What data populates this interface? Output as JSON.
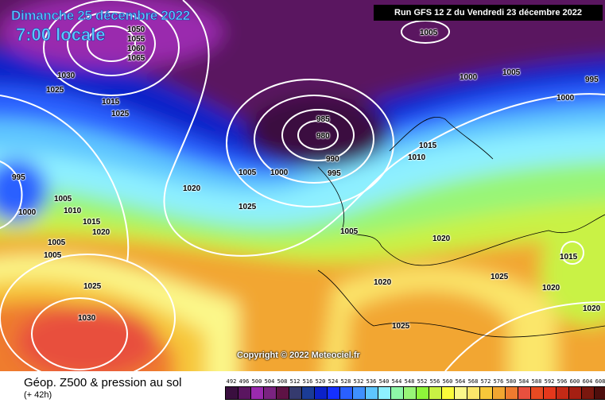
{
  "header": {
    "date": "Dimanche 25 décembre 2022",
    "local_time": "7:00 locale",
    "run_info": "Run GFS 12 Z du Vendredi 23 décembre 2022"
  },
  "copyright": "Copyright © 2022 Meteociel.fr",
  "footer": {
    "title": "Géop. Z500 & pression au sol",
    "forecast_offset": "(+ 42h)"
  },
  "pressure_labels": [
    "1050",
    "1055",
    "1060",
    "1065",
    "1030",
    "1025",
    "1015",
    "1025",
    "995",
    "1000",
    "1005",
    "1010",
    "1015",
    "1020",
    "1005",
    "1020",
    "1025",
    "1030",
    "1005",
    "1000",
    "985",
    "980",
    "990",
    "995",
    "1005",
    "1020",
    "1020",
    "1025",
    "1025",
    "1015",
    "1010",
    "1005",
    "1000",
    "1005",
    "995",
    "1015",
    "1020",
    "1020",
    "1005",
    "1000",
    "1025"
  ],
  "legend": {
    "values": [
      "492",
      "496",
      "500",
      "504",
      "508",
      "512",
      "516",
      "520",
      "524",
      "528",
      "532",
      "536",
      "540",
      "544",
      "548",
      "552",
      "556",
      "560",
      "564",
      "568",
      "572",
      "576",
      "580",
      "584",
      "588",
      "592",
      "596",
      "600",
      "604",
      "608",
      "612"
    ],
    "colors": [
      "#3a0f3f",
      "#5a1560",
      "#9a2aae",
      "#7a2380",
      "#5e1245",
      "#353a6e",
      "#1b3c96",
      "#0c22c9",
      "#1530ff",
      "#2a60ff",
      "#3f90ff",
      "#5ec6ff",
      "#8ef0ff",
      "#8ef7a8",
      "#98f577",
      "#8ef53a",
      "#c9f244",
      "#fbfb3a",
      "#fbf88a",
      "#fbe66a",
      "#f7c83a",
      "#f2a630",
      "#ef7b2f",
      "#e8503e",
      "#e84a22",
      "#e5381c",
      "#c42a16",
      "#a51f12",
      "#7a170e",
      "#4e0e0c",
      "#000000"
    ]
  }
}
